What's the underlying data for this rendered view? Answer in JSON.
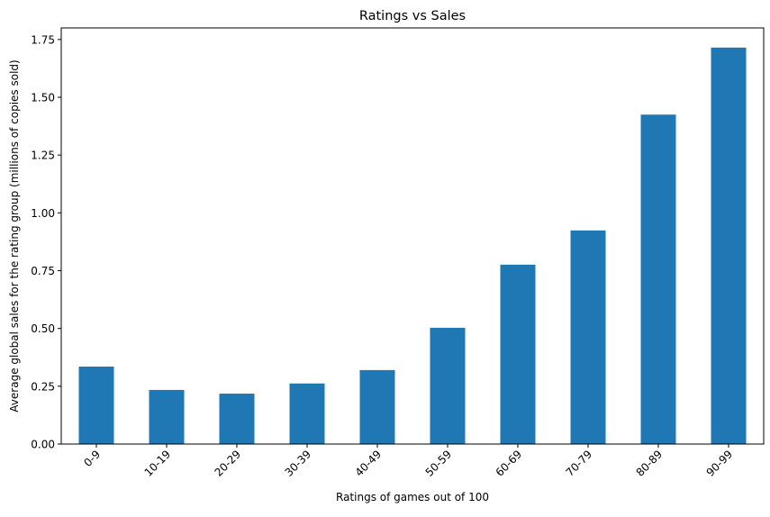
{
  "chart_data": {
    "type": "bar",
    "title": "Ratings vs Sales",
    "xlabel": "Ratings of games out of 100",
    "ylabel": "Average global sales for the rating group (millions of copies sold)",
    "categories": [
      "0-9",
      "10-19",
      "20-29",
      "30-39",
      "40-49",
      "50-59",
      "60-69",
      "70-79",
      "80-89",
      "90-99"
    ],
    "values": [
      0.335,
      0.234,
      0.218,
      0.262,
      0.32,
      0.503,
      0.776,
      0.924,
      1.425,
      1.715
    ],
    "ylim": [
      0,
      1.8
    ],
    "yticks": [
      0.0,
      0.25,
      0.5,
      0.75,
      1.0,
      1.25,
      1.5,
      1.75
    ],
    "ytick_labels": [
      "0.00",
      "0.25",
      "0.50",
      "0.75",
      "1.00",
      "1.25",
      "1.50",
      "1.75"
    ],
    "bar_color": "#1f77b4",
    "grid": false,
    "legend": false
  }
}
